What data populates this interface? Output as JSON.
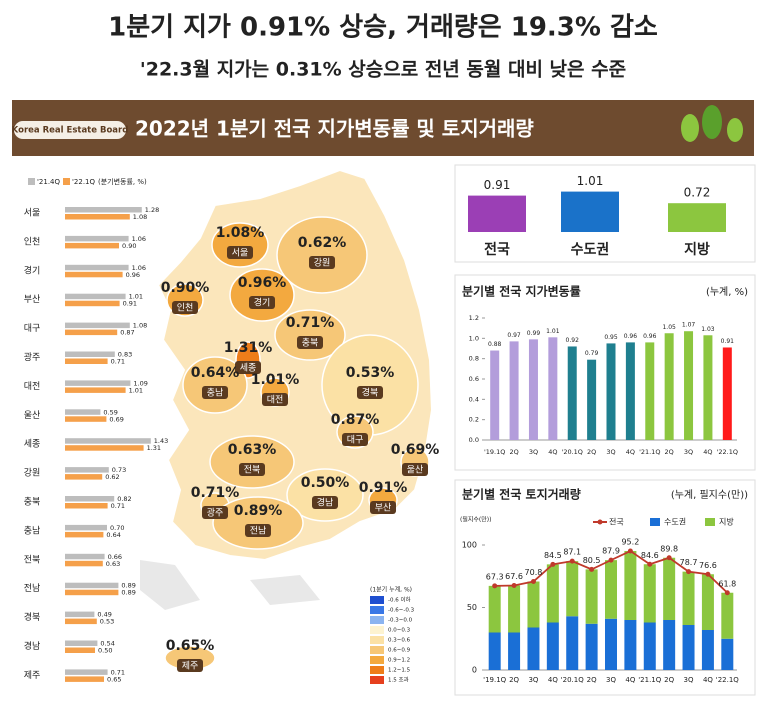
{
  "headline": "1분기 지가 0.91% 상승, 거래량은 19.3% 감소",
  "subheadline": "'22.3월 지가는 0.31% 상승으로 전년 동월 대비 낮은 수준",
  "banner": {
    "brand": "Korea Real Estate Board",
    "title": "2022년 1분기 전국 지가변동률 및 토지거래량"
  },
  "chart_data": [
    {
      "type": "hbar",
      "legend_note": "(분기변동률, %)",
      "categories": [
        "서울",
        "인천",
        "경기",
        "부산",
        "대구",
        "광주",
        "대전",
        "울산",
        "세종",
        "강원",
        "충북",
        "충남",
        "전북",
        "전남",
        "경북",
        "경남",
        "제주"
      ],
      "series": [
        {
          "name": "'21.4Q",
          "color": "#bdbdbd",
          "values": [
            1.28,
            1.06,
            1.06,
            1.01,
            1.08,
            0.83,
            1.09,
            0.59,
            1.43,
            0.73,
            0.82,
            0.7,
            0.66,
            0.89,
            0.49,
            0.54,
            0.71
          ],
          "value_labels": [
            "1.28",
            "1.06",
            "1.06",
            "1.01",
            "1.08",
            "0.83",
            "1.09",
            "0.59",
            "1.43",
            "0.73",
            "0.82",
            "0.70",
            "0.66",
            "0.89",
            "0.49",
            "0.54",
            "0.71"
          ]
        },
        {
          "name": "'22.1Q",
          "color": "#f5a04a",
          "values": [
            1.08,
            0.9,
            0.96,
            0.91,
            0.87,
            0.71,
            1.01,
            0.69,
            1.31,
            0.62,
            0.71,
            0.64,
            0.63,
            0.89,
            0.53,
            0.5,
            0.65
          ],
          "value_labels": [
            "1.08",
            "0.90",
            "0.96",
            "0.91",
            "0.87",
            "0.71",
            "1.01",
            "0.69",
            "1.31",
            "0.62",
            "0.71",
            "0.64",
            "0.63",
            "0.89",
            "0.53",
            "0.50",
            "0.65"
          ]
        }
      ]
    },
    {
      "type": "map",
      "legend_title": "(1분기 누계, %)",
      "legend": [
        {
          "label": "-0.6 이하",
          "color": "#1f4fd0"
        },
        {
          "label": "-0.6~-0.3",
          "color": "#3a78e6"
        },
        {
          "label": "-0.3~0.0",
          "color": "#8bb4f0"
        },
        {
          "label": "0.0~0.3",
          "color": "#fdf3d0"
        },
        {
          "label": "0.3~0.6",
          "color": "#fbe1a5"
        },
        {
          "label": "0.6~0.9",
          "color": "#f6c777"
        },
        {
          "label": "0.9~1.2",
          "color": "#f3a93f"
        },
        {
          "label": "1.2~1.5",
          "color": "#ee7d1a"
        },
        {
          "label": "1.5 초과",
          "color": "#e6401e"
        }
      ],
      "categories": [
        "서울",
        "강원",
        "인천",
        "경기",
        "충북",
        "세종",
        "충남",
        "대전",
        "경북",
        "대구",
        "전북",
        "울산",
        "경남",
        "부산",
        "광주",
        "전남",
        "제주"
      ],
      "values": [
        1.08,
        0.62,
        0.9,
        0.96,
        0.71,
        1.31,
        0.64,
        1.01,
        0.53,
        0.87,
        0.63,
        0.69,
        0.5,
        0.91,
        0.71,
        0.89,
        0.65
      ],
      "value_labels": [
        "1.08%",
        "0.62%",
        "0.90%",
        "0.96%",
        "0.71%",
        "1.31%",
        "0.64%",
        "1.01%",
        "0.53%",
        "0.87%",
        "0.63%",
        "0.69%",
        "0.50%",
        "0.91%",
        "0.71%",
        "0.89%",
        "0.65%"
      ],
      "colors": [
        "#f3a93f",
        "#f6c777",
        "#f3a93f",
        "#f3a93f",
        "#f6c777",
        "#ee7d1a",
        "#f6c777",
        "#f3a93f",
        "#fbe1a5",
        "#f6c777",
        "#f6c777",
        "#f6c777",
        "#fbe1a5",
        "#f3a93f",
        "#f6c777",
        "#f6c777",
        "#f6c777"
      ]
    },
    {
      "type": "bar",
      "categories": [
        "전국",
        "수도권",
        "지방"
      ],
      "values": [
        0.91,
        1.01,
        0.72
      ],
      "colors": [
        "#9b3fb5",
        "#1a72c9",
        "#8cc63f"
      ]
    },
    {
      "type": "bar",
      "title": "분기별 전국 지가변동률",
      "subtitle": "(누계, %)",
      "categories": [
        "'19.1Q",
        "2Q",
        "3Q",
        "4Q",
        "'20.1Q",
        "2Q",
        "3Q",
        "4Q",
        "'21.1Q",
        "2Q",
        "3Q",
        "4Q",
        "'22.1Q"
      ],
      "values": [
        0.88,
        0.97,
        0.99,
        1.01,
        0.92,
        0.79,
        0.95,
        0.96,
        0.96,
        1.05,
        1.07,
        1.03,
        0.91
      ],
      "colors": [
        "#b39ddb",
        "#b39ddb",
        "#b39ddb",
        "#b39ddb",
        "#1f7f8f",
        "#1f7f8f",
        "#1f7f8f",
        "#1f7f8f",
        "#8cc63f",
        "#8cc63f",
        "#8cc63f",
        "#8cc63f",
        "#ff1a1a"
      ],
      "ylim": [
        0,
        1.2
      ],
      "yticks": [
        {
          "value": 0,
          "label": "0.0"
        },
        0.2,
        0.4,
        0.6,
        0.8,
        {
          "value": 1,
          "label": "1.0"
        },
        1.2
      ]
    },
    {
      "type": "combo",
      "title": "분기별 전국 토지거래량",
      "subtitle": "(누계, 필지수(만))",
      "y_label": "(필지수(만))",
      "categories": [
        "'19.1Q",
        "2Q",
        "3Q",
        "4Q",
        "'20.1Q",
        "2Q",
        "3Q",
        "4Q",
        "'21.1Q",
        "2Q",
        "3Q",
        "4Q",
        "'22.1Q"
      ],
      "series": [
        {
          "name": "전국",
          "mark": "line",
          "color": "#c0392b",
          "values": [
            67.3,
            67.6,
            70.8,
            84.5,
            87.1,
            80.5,
            87.9,
            95.2,
            84.6,
            89.8,
            78.7,
            76.6,
            61.8
          ]
        },
        {
          "name": "수도권",
          "mark": "stack",
          "color": "#1a6fd6",
          "values": [
            30,
            30,
            34,
            38,
            43,
            37,
            41,
            40,
            38,
            40,
            36,
            32,
            25
          ]
        },
        {
          "name": "지방",
          "mark": "stack",
          "color": "#8cc63f",
          "values": [
            37.3,
            37.6,
            36.8,
            46.5,
            44.1,
            43.5,
            46.9,
            55.2,
            46.6,
            49.8,
            42.7,
            44.6,
            36.8
          ]
        }
      ],
      "ylim": [
        0,
        100
      ],
      "yticks": [
        0,
        50,
        100
      ]
    }
  ]
}
